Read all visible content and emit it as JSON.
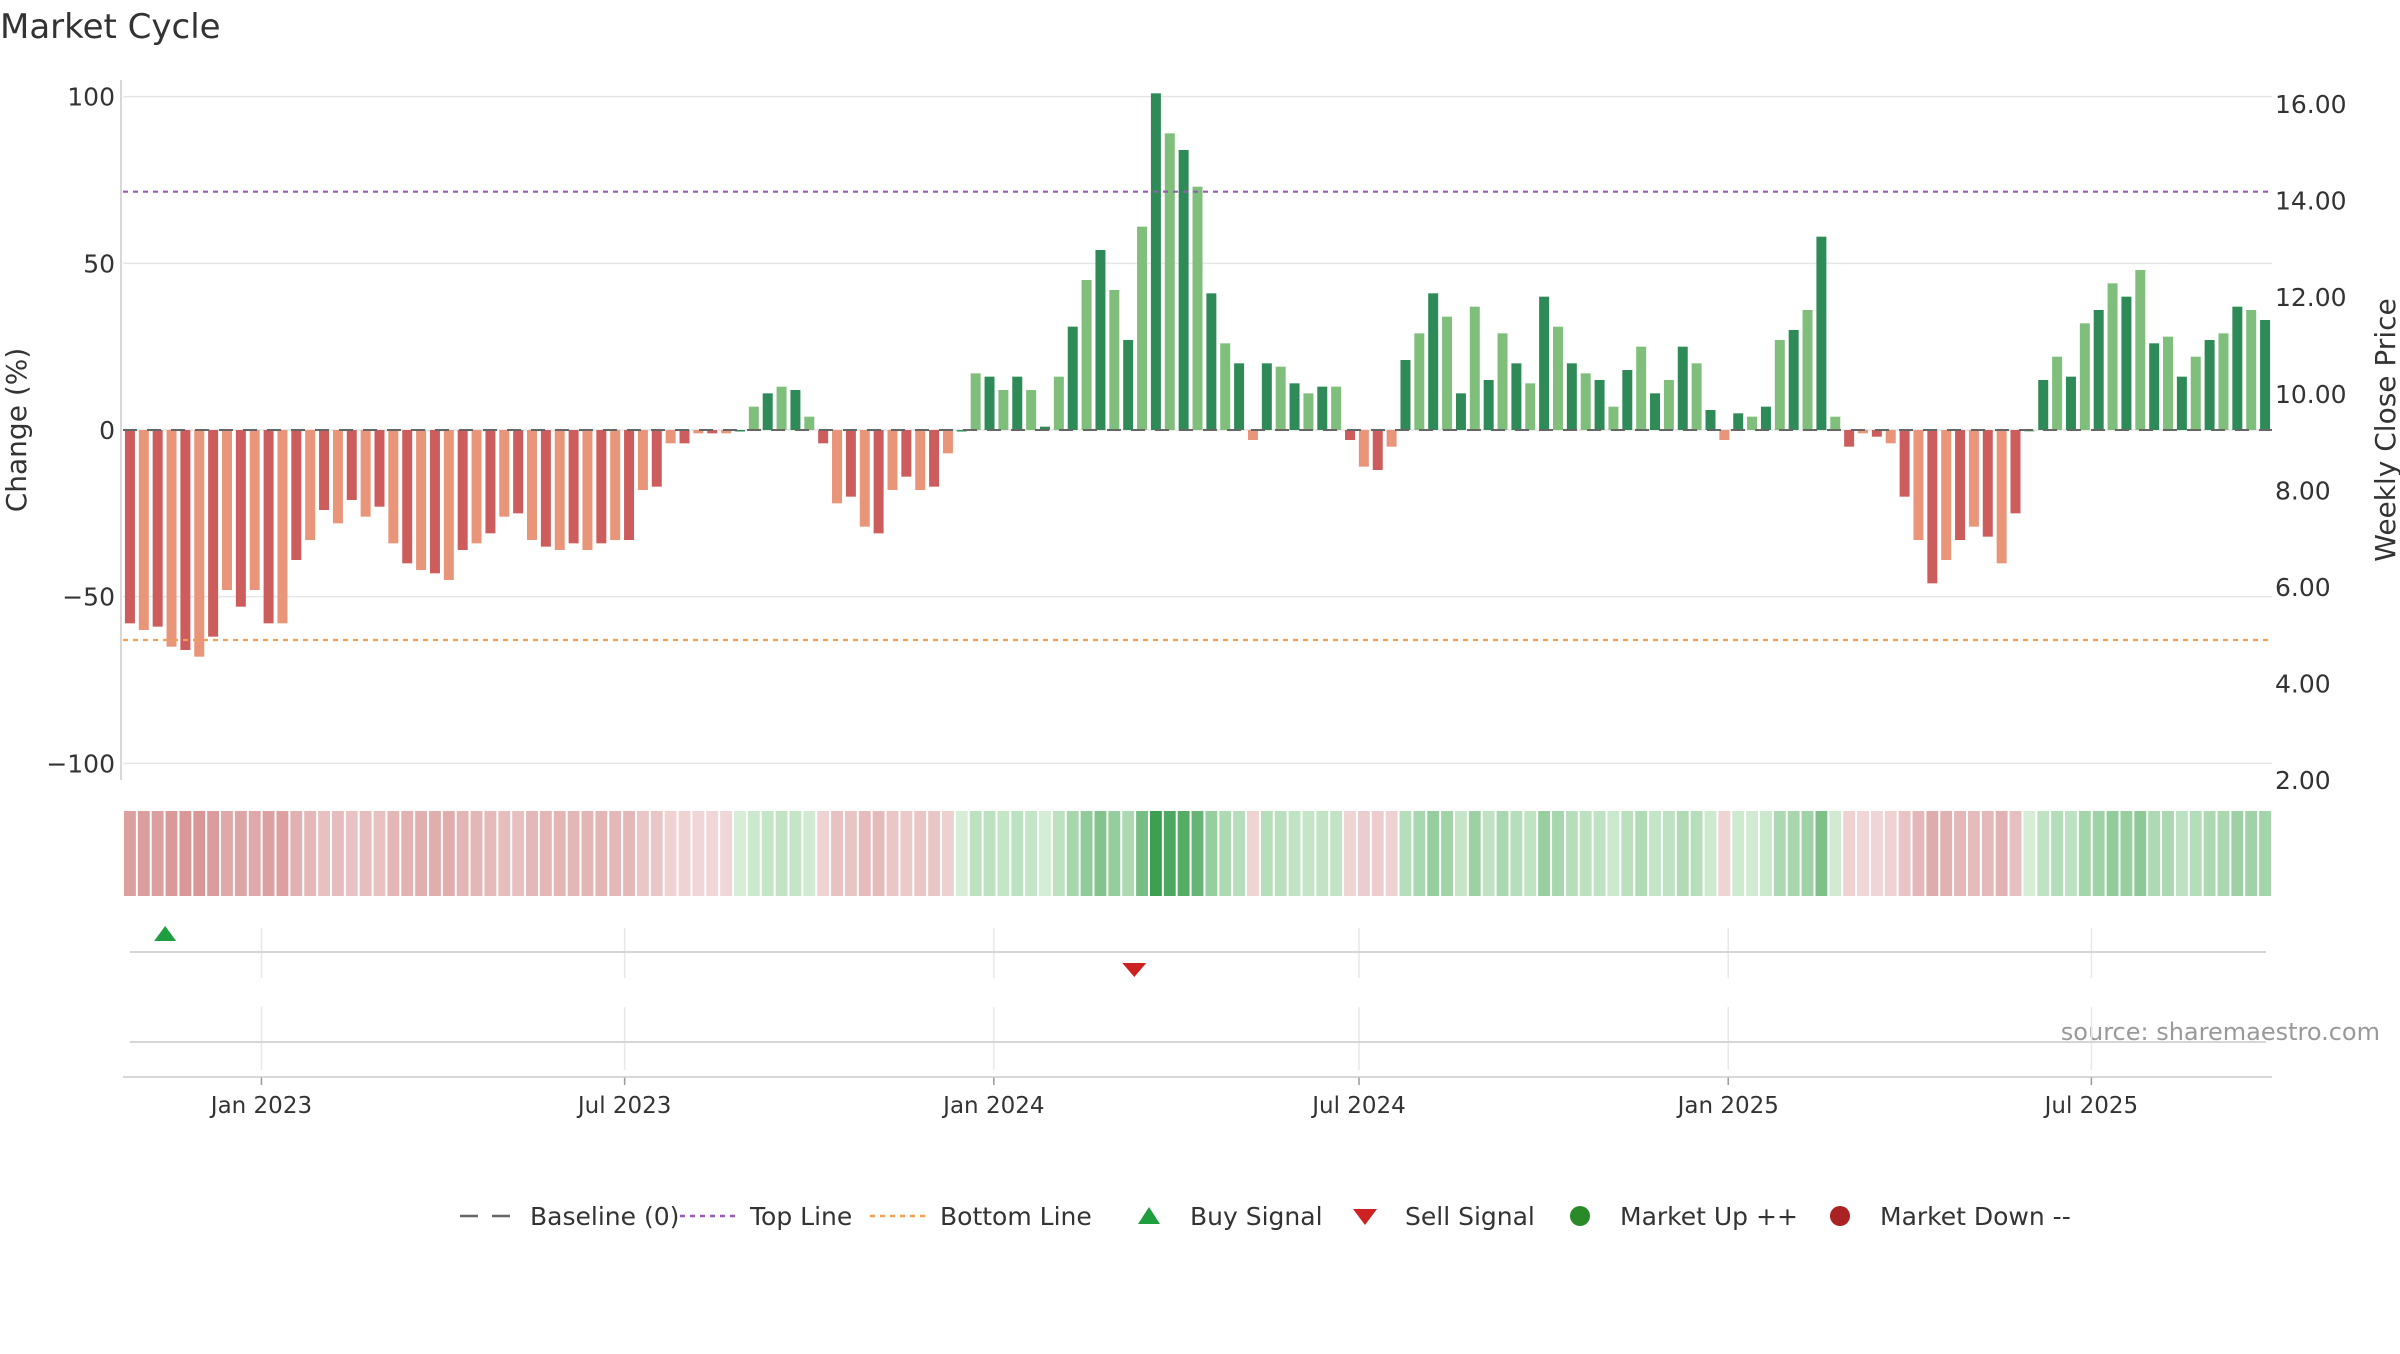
{
  "chart_data": {
    "type": "bar",
    "title": "Market Cycle",
    "ylabel": "Change (%)",
    "y2label": "Weekly Close Price",
    "ylim": [
      -105,
      105
    ],
    "y2lim": [
      2.0,
      16.5
    ],
    "yticks": [
      100,
      50,
      0,
      -50,
      -100
    ],
    "ytick_labels": [
      "100",
      "50",
      "0",
      "−50",
      "−100"
    ],
    "y2ticks": [
      "16.00",
      "14.00",
      "12.00",
      "10.00",
      "8.00",
      "6.00",
      "4.00",
      "2.00"
    ],
    "x_start": "2022-10-24",
    "x_end": "2025-09-29",
    "xticks": [
      {
        "date": "2023-01-01",
        "label": "Jan 2023"
      },
      {
        "date": "2023-07-01",
        "label": "Jul 2023"
      },
      {
        "date": "2024-01-01",
        "label": "Jan 2024"
      },
      {
        "date": "2024-07-01",
        "label": "Jul 2024"
      },
      {
        "date": "2025-01-01",
        "label": "Jan 2025"
      },
      {
        "date": "2025-07-01",
        "label": "Jul 2025"
      }
    ],
    "top_line": 71.5,
    "bottom_line": -63,
    "grid": true,
    "source_note": "source: sharemaestro.com",
    "legend": [
      {
        "name": "Baseline (0)",
        "marker": "dash",
        "color": "#666666"
      },
      {
        "name": "Top Line",
        "marker": "dotted",
        "color": "#9b59b6"
      },
      {
        "name": "Bottom Line",
        "marker": "dotted",
        "color": "#f0a050"
      },
      {
        "name": "Buy Signal",
        "marker": "triangle-up",
        "color": "#1e9e3e"
      },
      {
        "name": "Sell Signal",
        "marker": "triangle-down",
        "color": "#cc2222"
      },
      {
        "name": "Market Up ++",
        "marker": "circle",
        "color": "#2a8a2a"
      },
      {
        "name": "Market Down --",
        "marker": "circle",
        "color": "#aa2222"
      }
    ],
    "signals": [
      {
        "type": "buy",
        "date": "2022-11-14"
      },
      {
        "type": "sell",
        "date": "2024-03-11"
      }
    ],
    "values": [
      -58,
      -60,
      -59,
      -65,
      -66,
      -68,
      -62,
      -48,
      -53,
      -48,
      -58,
      -58,
      -39,
      -33,
      -24,
      -28,
      -21,
      -26,
      -23,
      -34,
      -40,
      -42,
      -43,
      -45,
      -36,
      -34,
      -31,
      -26,
      -25,
      -33,
      -35,
      -36,
      -34,
      -36,
      -34,
      -33,
      -33,
      -18,
      -17,
      -4,
      -4,
      -1,
      -1,
      -1,
      0,
      7,
      11,
      13,
      12,
      4,
      -4,
      -22,
      -20,
      -29,
      -31,
      -18,
      -14,
      -18,
      -17,
      -7,
      0,
      17,
      16,
      12,
      16,
      12,
      1,
      16,
      31,
      45,
      54,
      42,
      27,
      61,
      101,
      89,
      84,
      73,
      41,
      26,
      20,
      -3,
      20,
      19,
      14,
      11,
      13,
      13,
      -3,
      -11,
      -12,
      -5,
      21,
      29,
      41,
      34,
      11,
      37,
      15,
      29,
      20,
      14,
      40,
      31,
      20,
      17,
      15,
      7,
      18,
      25,
      11,
      15,
      25,
      20,
      6,
      -3,
      5,
      4,
      7,
      27,
      30,
      36,
      58,
      4,
      -5,
      -1,
      -2,
      -4,
      -20,
      -33,
      -46,
      -39,
      -33,
      -29,
      -32,
      -40,
      -25,
      0,
      15,
      22,
      16,
      32,
      36,
      44,
      40,
      48,
      26,
      28,
      16,
      22,
      27,
      29,
      37,
      36,
      33
    ]
  }
}
